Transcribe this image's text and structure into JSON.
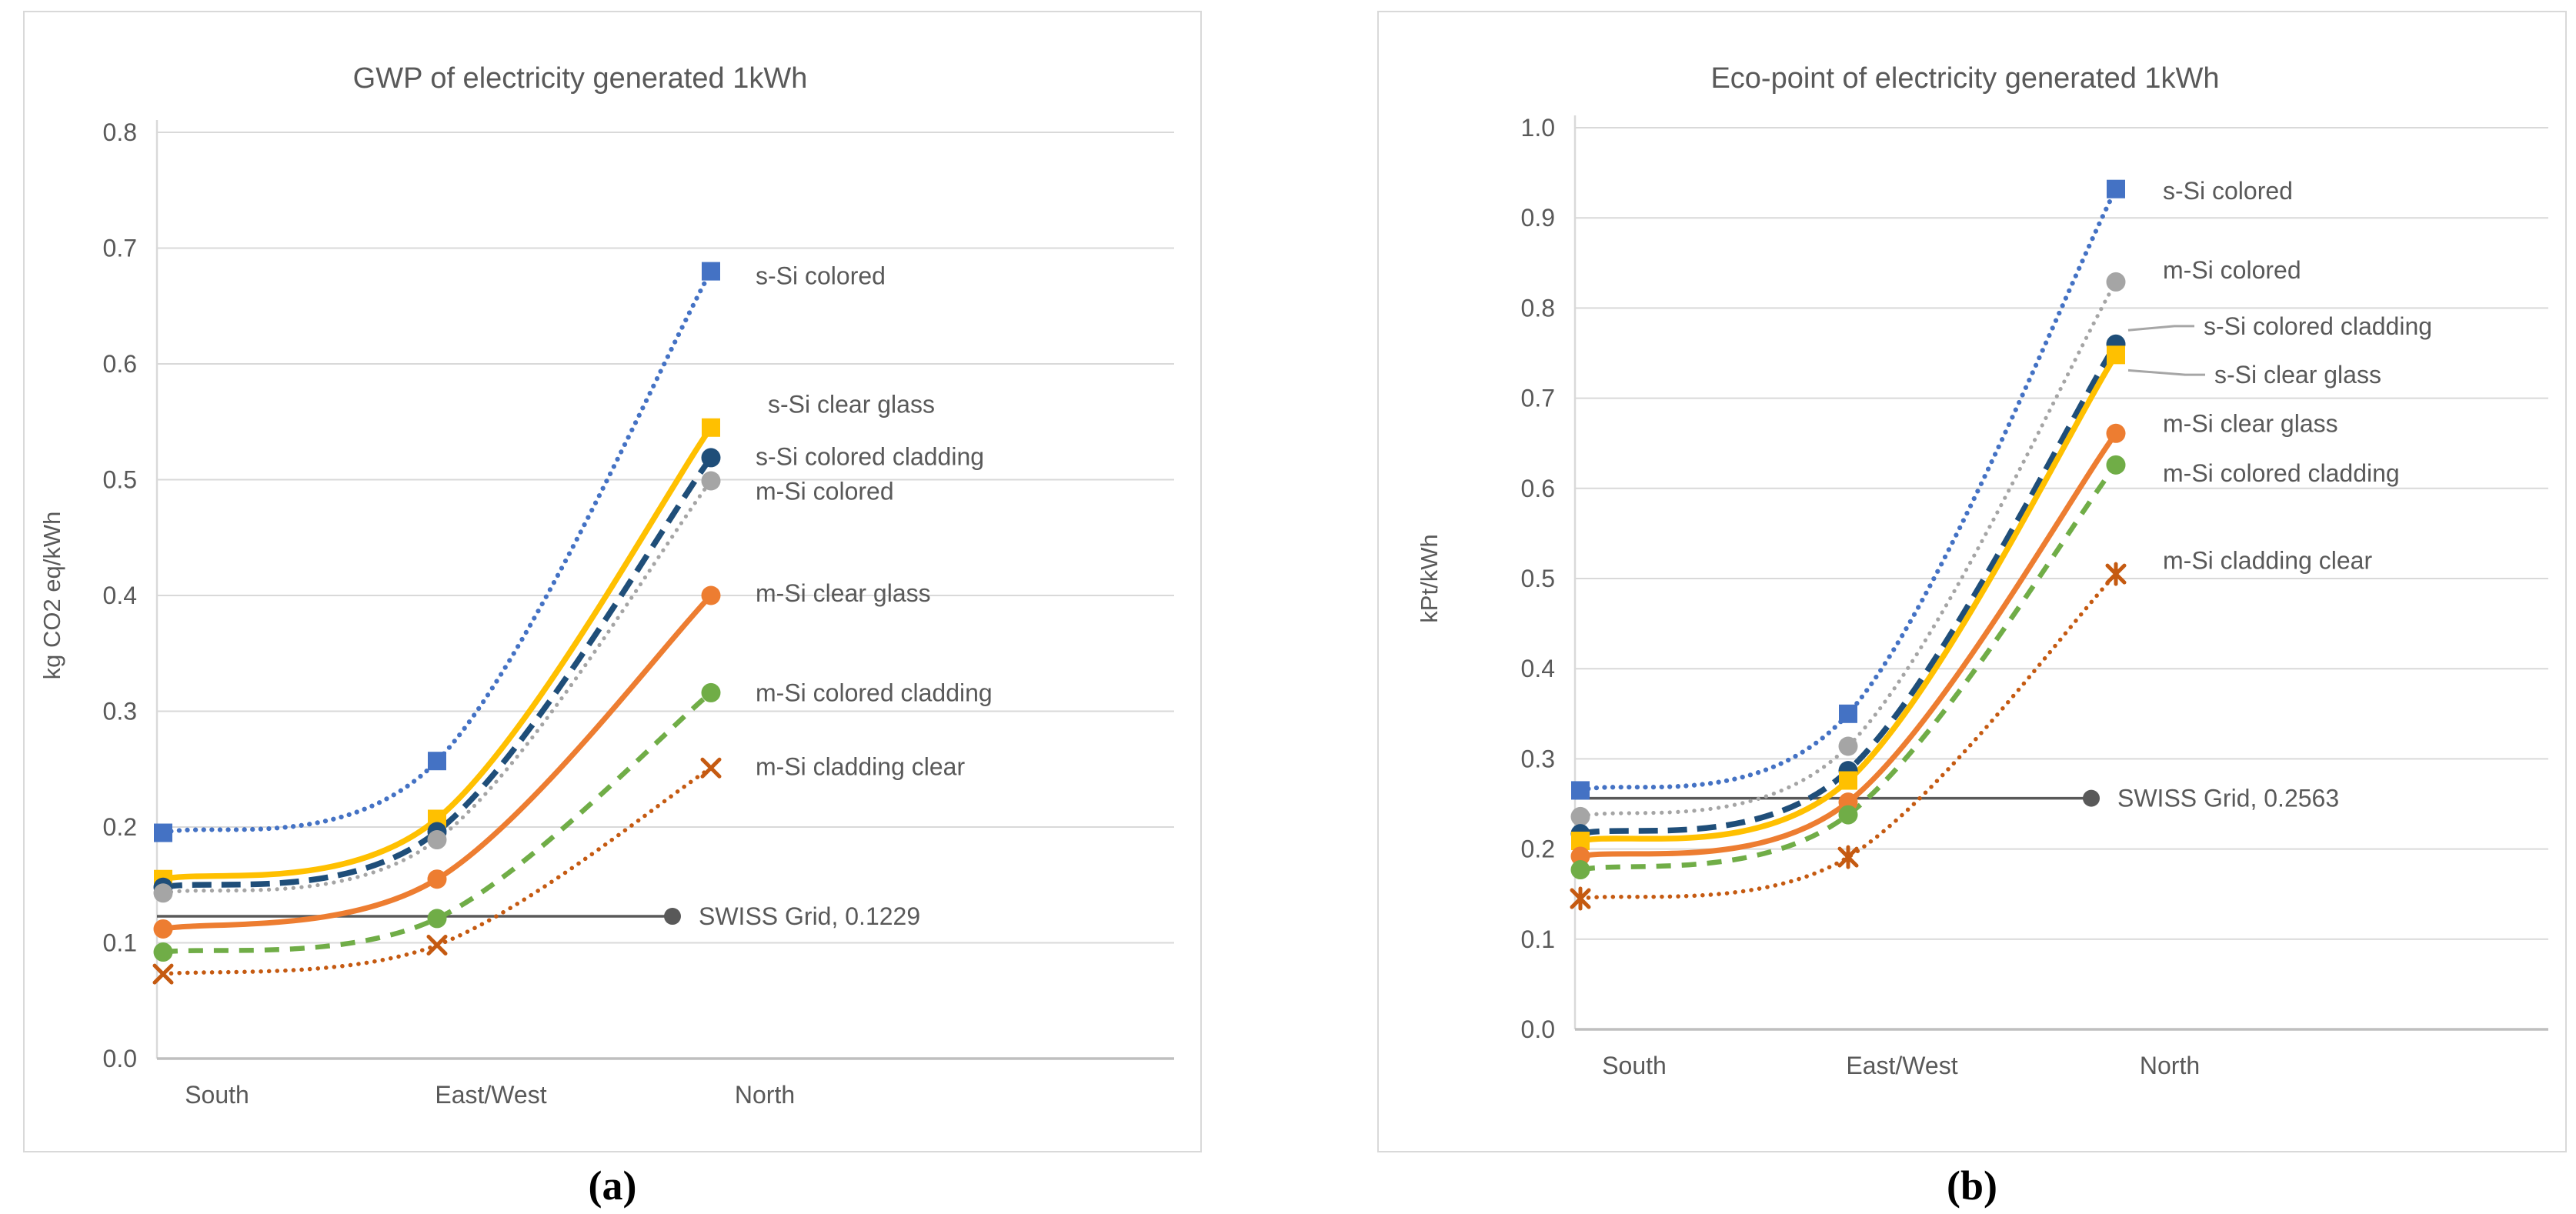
{
  "captions": {
    "a": "(a)",
    "b": "(b)"
  },
  "colors": {
    "text_gray": "#595959",
    "gridline": "#D9D9D9",
    "axis_line": "#BFBFBF",
    "reference_gray": "#595959"
  },
  "chart_data": [
    {
      "type": "line",
      "title": "GWP of electricity generated 1kWh",
      "xlabel": "",
      "ylabel": "kg CO2 eq/kWh",
      "categories": [
        "South",
        "East/West",
        "North"
      ],
      "ylim": [
        0.0,
        0.8
      ],
      "ytick_step": 0.1,
      "grid": true,
      "legend_position": "labels at right end of each line",
      "series": [
        {
          "name": "s-Si colored",
          "values": [
            0.195,
            0.257,
            0.68
          ],
          "color": "#4472C4",
          "line": "dotted",
          "marker": "square",
          "lw": 6.2,
          "label_y": 0.676,
          "label_dx": 0
        },
        {
          "name": "s-Si clear glass",
          "values": [
            0.155,
            0.207,
            0.545
          ],
          "color": "#FFC000",
          "line": "solid",
          "marker": "square",
          "lw": 7.4,
          "label_y": 0.565,
          "label_dx": 16
        },
        {
          "name": "s-Si colored cladding",
          "values": [
            0.148,
            0.196,
            0.519
          ],
          "color": "#1F4E79",
          "line": "long-dash",
          "marker": "circle",
          "lw": 7.5,
          "label_y": 0.52,
          "label_dx": 0
        },
        {
          "name": "m-Si colored",
          "values": [
            0.143,
            0.189,
            0.499
          ],
          "color": "#A5A5A5",
          "line": "dotted",
          "marker": "circle",
          "lw": 5.2,
          "label_y": 0.49,
          "label_dx": 0
        },
        {
          "name": "m-Si clear glass",
          "values": [
            0.112,
            0.155,
            0.4
          ],
          "color": "#ED7D31",
          "line": "solid",
          "marker": "circle",
          "lw": 7.0,
          "label_y": 0.402,
          "label_dx": 0
        },
        {
          "name": "m-Si colored cladding",
          "values": [
            0.092,
            0.121,
            0.316
          ],
          "color": "#70AD47",
          "line": "dash",
          "marker": "circle",
          "lw": 6.5,
          "label_y": 0.316,
          "label_dx": 0
        },
        {
          "name": "m-Si cladding clear",
          "values": [
            0.073,
            0.098,
            0.251
          ],
          "color": "#C55A11",
          "line": "dotted",
          "marker": "x",
          "lw": 5.5,
          "label_y": 0.252,
          "label_dx": 0
        }
      ],
      "reference_line": {
        "name": "SWISS Grid",
        "value": 0.1229,
        "label": "SWISS Grid, 0.1229",
        "color": "#595959"
      }
    },
    {
      "type": "line",
      "title": "Eco-point of electricity generated 1kWh",
      "xlabel": "",
      "ylabel": "kPt/kWh",
      "categories": [
        "South",
        "East/West",
        "North"
      ],
      "ylim": [
        0.0,
        1.0
      ],
      "ytick_step": 0.1,
      "grid": true,
      "legend_position": "labels at right end of each line",
      "series": [
        {
          "name": "s-Si colored",
          "values": [
            0.265,
            0.35,
            0.932
          ],
          "color": "#4472C4",
          "line": "dotted",
          "marker": "square",
          "lw": 6.2,
          "label_y": 0.93,
          "label_dx": 5
        },
        {
          "name": "m-Si colored",
          "values": [
            0.236,
            0.314,
            0.829
          ],
          "color": "#A5A5A5",
          "line": "dotted",
          "marker": "circle",
          "lw": 5.2,
          "label_y": 0.842,
          "label_dx": 5
        },
        {
          "name": "s-Si colored cladding",
          "values": [
            0.217,
            0.287,
            0.76
          ],
          "color": "#1F4E79",
          "line": "long-dash",
          "marker": "circle",
          "lw": 7.5,
          "label_y": 0.78,
          "label_dx": 58,
          "leader": true
        },
        {
          "name": "s-Si clear glass",
          "values": [
            0.209,
            0.276,
            0.748
          ],
          "color": "#FFC000",
          "line": "solid",
          "marker": "square",
          "lw": 7.4,
          "label_y": 0.726,
          "label_dx": 72,
          "leader": true
        },
        {
          "name": "m-Si clear glass",
          "values": [
            0.192,
            0.252,
            0.661
          ],
          "color": "#ED7D31",
          "line": "solid",
          "marker": "circle",
          "lw": 7.0,
          "label_y": 0.672,
          "label_dx": 5
        },
        {
          "name": "m-Si colored cladding",
          "values": [
            0.177,
            0.238,
            0.626
          ],
          "color": "#70AD47",
          "line": "dash",
          "marker": "circle",
          "lw": 6.5,
          "label_y": 0.617,
          "label_dx": 5
        },
        {
          "name": "m-Si cladding clear",
          "values": [
            0.145,
            0.191,
            0.505
          ],
          "color": "#C55A11",
          "line": "dotted",
          "marker": "star",
          "lw": 5.5,
          "label_y": 0.52,
          "label_dx": 5
        }
      ],
      "reference_line": {
        "name": "SWISS Grid",
        "value": 0.2563,
        "label": "SWISS Grid, 0.2563",
        "color": "#595959"
      }
    }
  ]
}
